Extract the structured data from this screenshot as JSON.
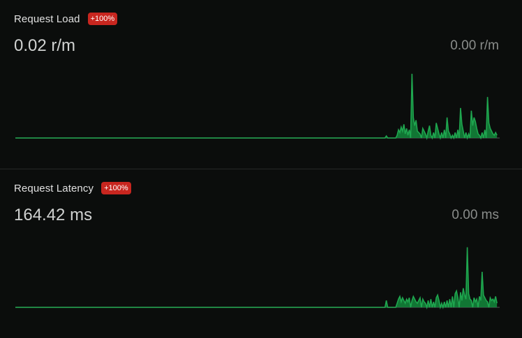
{
  "colors": {
    "background": "#0b0d0c",
    "line": "#1fa64f",
    "fill": "#138a3c",
    "badge": "#c8261f",
    "baseline": "#3a3d3c"
  },
  "panels": [
    {
      "title": "Request Load",
      "badge": "+100%",
      "value": "0.02 r/m",
      "previous": "0.00 r/m",
      "chart_data": {
        "type": "area",
        "points": 360,
        "spikes": [
          [
            275,
            3
          ],
          [
            283,
            4
          ],
          [
            284,
            12
          ],
          [
            285,
            8
          ],
          [
            286,
            16
          ],
          [
            287,
            10
          ],
          [
            288,
            20
          ],
          [
            289,
            6
          ],
          [
            290,
            14
          ],
          [
            291,
            4
          ],
          [
            292,
            12
          ],
          [
            294,
            94
          ],
          [
            295,
            30
          ],
          [
            296,
            18
          ],
          [
            297,
            26
          ],
          [
            298,
            10
          ],
          [
            299,
            8
          ],
          [
            300,
            6
          ],
          [
            302,
            14
          ],
          [
            303,
            10
          ],
          [
            304,
            6
          ],
          [
            306,
            10
          ],
          [
            307,
            18
          ],
          [
            308,
            4
          ],
          [
            310,
            8
          ],
          [
            312,
            22
          ],
          [
            313,
            14
          ],
          [
            314,
            6
          ],
          [
            316,
            8
          ],
          [
            318,
            12
          ],
          [
            320,
            30
          ],
          [
            321,
            10
          ],
          [
            322,
            6
          ],
          [
            324,
            4
          ],
          [
            326,
            8
          ],
          [
            328,
            12
          ],
          [
            330,
            44
          ],
          [
            331,
            20
          ],
          [
            332,
            10
          ],
          [
            334,
            8
          ],
          [
            336,
            6
          ],
          [
            338,
            40
          ],
          [
            339,
            18
          ],
          [
            340,
            30
          ],
          [
            341,
            24
          ],
          [
            342,
            14
          ],
          [
            343,
            6
          ],
          [
            344,
            4
          ],
          [
            346,
            8
          ],
          [
            348,
            12
          ],
          [
            350,
            60
          ],
          [
            351,
            22
          ],
          [
            352,
            14
          ],
          [
            353,
            10
          ],
          [
            354,
            6
          ],
          [
            355,
            4
          ],
          [
            356,
            8
          ],
          [
            357,
            4
          ]
        ]
      }
    },
    {
      "title": "Request Latency",
      "badge": "+100%",
      "value": "164.42 ms",
      "previous": "0.00 ms",
      "chart_data": {
        "type": "area",
        "points": 360,
        "spikes": [
          [
            275,
            10
          ],
          [
            283,
            6
          ],
          [
            284,
            12
          ],
          [
            285,
            16
          ],
          [
            286,
            8
          ],
          [
            287,
            14
          ],
          [
            288,
            10
          ],
          [
            289,
            6
          ],
          [
            290,
            12
          ],
          [
            291,
            8
          ],
          [
            292,
            14
          ],
          [
            294,
            10
          ],
          [
            295,
            16
          ],
          [
            296,
            12
          ],
          [
            297,
            8
          ],
          [
            298,
            6
          ],
          [
            299,
            10
          ],
          [
            300,
            14
          ],
          [
            302,
            12
          ],
          [
            303,
            8
          ],
          [
            304,
            6
          ],
          [
            306,
            10
          ],
          [
            308,
            12
          ],
          [
            310,
            8
          ],
          [
            312,
            14
          ],
          [
            313,
            18
          ],
          [
            314,
            10
          ],
          [
            316,
            6
          ],
          [
            318,
            8
          ],
          [
            320,
            10
          ],
          [
            322,
            12
          ],
          [
            324,
            16
          ],
          [
            326,
            20
          ],
          [
            327,
            24
          ],
          [
            328,
            14
          ],
          [
            330,
            22
          ],
          [
            331,
            10
          ],
          [
            332,
            28
          ],
          [
            333,
            18
          ],
          [
            334,
            12
          ],
          [
            335,
            88
          ],
          [
            336,
            20
          ],
          [
            337,
            12
          ],
          [
            338,
            10
          ],
          [
            340,
            14
          ],
          [
            341,
            8
          ],
          [
            342,
            12
          ],
          [
            344,
            16
          ],
          [
            345,
            10
          ],
          [
            346,
            52
          ],
          [
            347,
            18
          ],
          [
            348,
            14
          ],
          [
            349,
            10
          ],
          [
            350,
            8
          ],
          [
            352,
            14
          ],
          [
            353,
            10
          ],
          [
            354,
            12
          ],
          [
            355,
            8
          ],
          [
            356,
            16
          ],
          [
            357,
            6
          ]
        ]
      }
    }
  ]
}
